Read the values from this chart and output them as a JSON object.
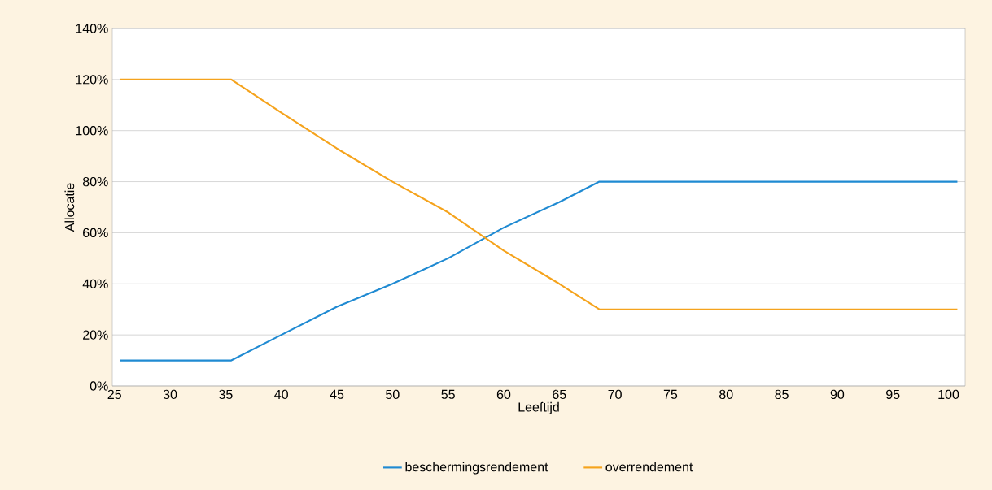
{
  "chart_data": {
    "type": "line",
    "xlabel": "Leeftijd",
    "ylabel": "Allocatie",
    "xlim": [
      24.8,
      101.5
    ],
    "xticks": [
      25,
      30,
      35,
      40,
      45,
      50,
      55,
      60,
      65,
      70,
      75,
      80,
      85,
      90,
      95,
      100
    ],
    "ylim": [
      0,
      140
    ],
    "yticks": [
      {
        "value": 0,
        "label": "0%"
      },
      {
        "value": 20,
        "label": "20%"
      },
      {
        "value": 40,
        "label": "40%"
      },
      {
        "value": 60,
        "label": "60%"
      },
      {
        "value": 80,
        "label": "80%"
      },
      {
        "value": 100,
        "label": "100%"
      },
      {
        "value": 120,
        "label": "120%"
      },
      {
        "value": 140,
        "label": "140%"
      }
    ],
    "grid": "y",
    "legend": "bottom",
    "marker": "none",
    "line_style": "solid",
    "x": [
      25.5,
      35.5,
      40,
      45,
      50,
      55,
      60,
      65,
      68.6,
      100.8
    ],
    "series": [
      {
        "name": "beschermingsrendement",
        "color": "#1f8ad2",
        "values": [
          10,
          10,
          20,
          31,
          40,
          50,
          62,
          72,
          80,
          80
        ]
      },
      {
        "name": "overrendement",
        "color": "#f5a31c",
        "values": [
          120,
          120,
          107,
          93,
          80,
          68,
          53,
          40,
          30,
          30
        ]
      }
    ]
  }
}
